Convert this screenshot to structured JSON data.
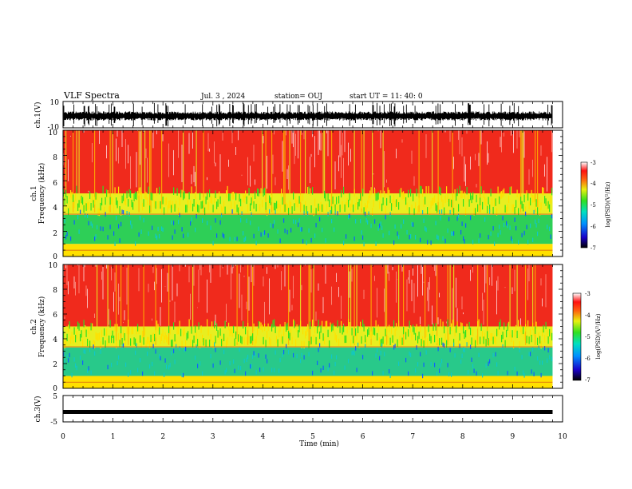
{
  "header": {
    "title": "VLF Spectra",
    "date": "Jul. 3 , 2024",
    "station": "station= OUJ",
    "start": "start UT =  11: 40: 0"
  },
  "chart_data": [
    {
      "type": "line",
      "name": "ch1-waveform",
      "ylabel": "ch.1(V)",
      "ylim": [
        -10,
        10
      ],
      "yticks": [
        "10",
        "-10"
      ],
      "xlim": [
        0,
        10
      ],
      "note": "dense noisy waveform trace from 0 to ~9.8 min"
    },
    {
      "type": "heatmap",
      "name": "ch1-spectrogram",
      "ylabel": "Frequency (kHz)",
      "channel_label": "ch.1",
      "ylim": [
        0,
        10
      ],
      "yticks": [
        "0",
        "2",
        "4",
        "6",
        "8",
        "10"
      ],
      "xlim": [
        0,
        10
      ],
      "colorbar": {
        "label": "log(PSD)(V²/Hz)",
        "range": [
          -7,
          -3
        ],
        "ticks": [
          "-3",
          "-4",
          "-5",
          "-6",
          "-7"
        ]
      },
      "bands": [
        {
          "from_khz": 0,
          "to_khz": 1.0,
          "color": "#ffe000"
        },
        {
          "from_khz": 1.0,
          "to_khz": 3.3,
          "color": "#2ecf57"
        },
        {
          "from_khz": 3.3,
          "to_khz": 5.0,
          "color": "#e8ee20"
        },
        {
          "from_khz": 5.0,
          "to_khz": 10,
          "color": "#f02a1c"
        }
      ]
    },
    {
      "type": "heatmap",
      "name": "ch2-spectrogram",
      "ylabel": "Frequency (kHz)",
      "channel_label": "ch.2",
      "ylim": [
        0,
        10
      ],
      "yticks": [
        "0",
        "2",
        "4",
        "6",
        "8",
        "10"
      ],
      "xlim": [
        0,
        10
      ],
      "colorbar": {
        "label": "log(PSD)(V²/Hz)",
        "range": [
          -7,
          -3
        ],
        "ticks": [
          "-3",
          "-4",
          "-5",
          "-6",
          "-7"
        ]
      },
      "bands": [
        {
          "from_khz": 0,
          "to_khz": 1.0,
          "color": "#ffe000"
        },
        {
          "from_khz": 1.0,
          "to_khz": 3.3,
          "color": "#28c98a"
        },
        {
          "from_khz": 3.3,
          "to_khz": 5.0,
          "color": "#e8ee20"
        },
        {
          "from_khz": 5.0,
          "to_khz": 10,
          "color": "#f02a1c"
        }
      ]
    },
    {
      "type": "line",
      "name": "ch3-waveform",
      "ylabel": "ch.3(V)",
      "ylim": [
        -5,
        5
      ],
      "yticks": [
        "5",
        "-5"
      ],
      "xlim": [
        0,
        10
      ],
      "x": [
        0,
        9.8
      ],
      "y": [
        -1.2,
        -1.2
      ]
    }
  ],
  "xaxis": {
    "label": "Time (min)",
    "ticks": [
      "0",
      "1",
      "2",
      "3",
      "4",
      "5",
      "6",
      "7",
      "8",
      "9",
      "10"
    ]
  }
}
